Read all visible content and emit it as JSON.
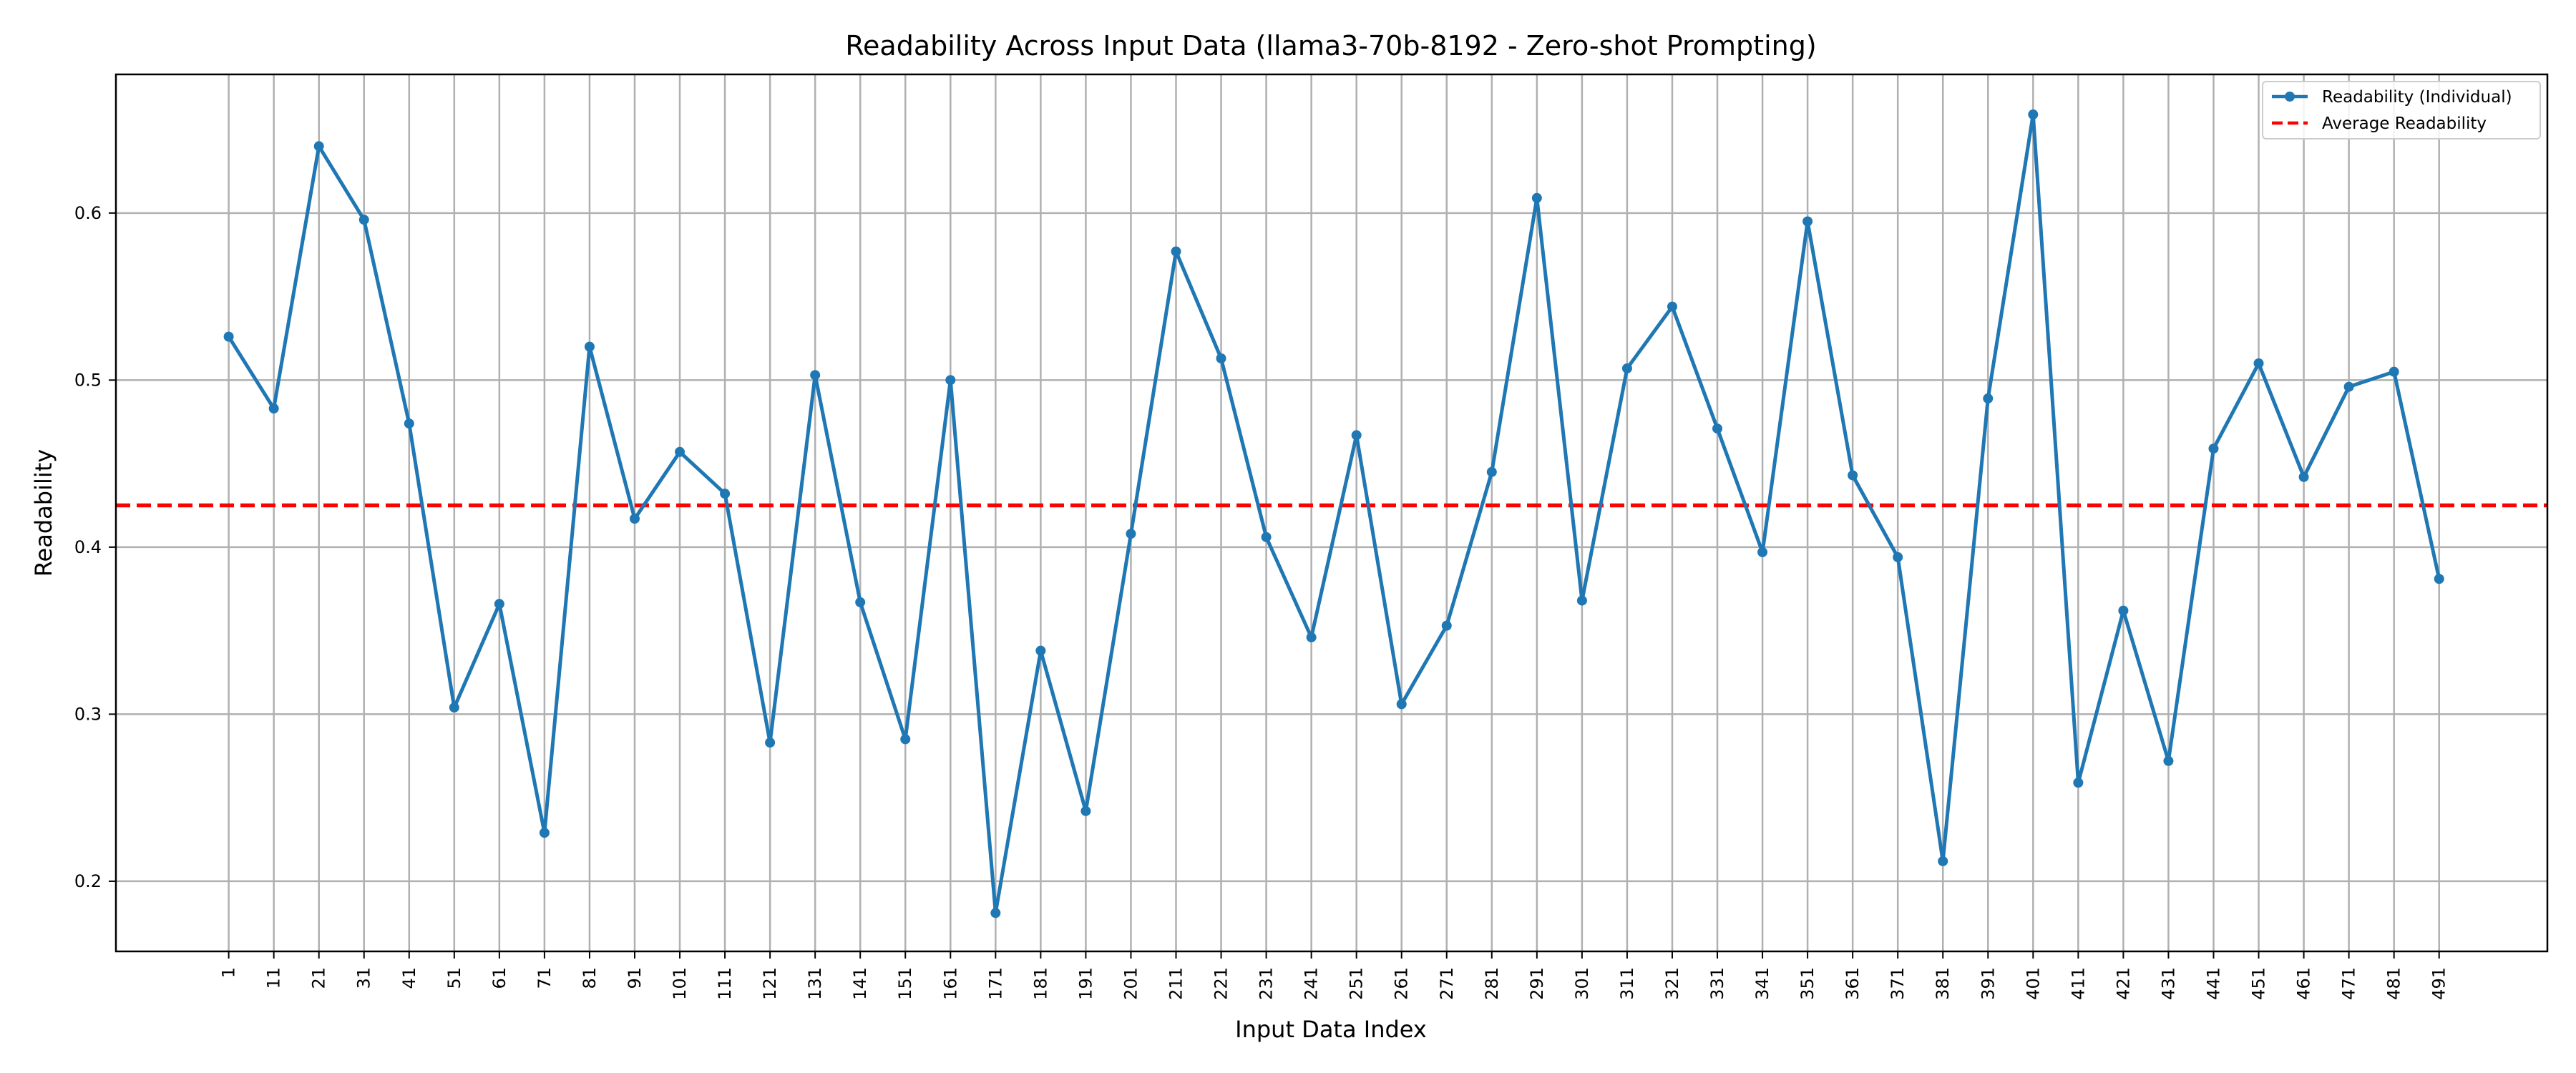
{
  "chart_data": {
    "type": "line",
    "title": "Readability Across Input Data (llama3-70b-8192 - Zero-shot Prompting)",
    "xlabel": "Input Data Index",
    "ylabel": "Readability",
    "grid": true,
    "legend_position": "top-right",
    "xlim": [
      -24,
      515
    ],
    "ylim": [
      0.158,
      0.683
    ],
    "x": [
      1,
      11,
      21,
      31,
      41,
      51,
      61,
      71,
      81,
      91,
      101,
      111,
      121,
      131,
      141,
      151,
      161,
      171,
      181,
      191,
      201,
      211,
      221,
      231,
      241,
      251,
      261,
      271,
      281,
      291,
      301,
      311,
      321,
      331,
      341,
      351,
      361,
      371,
      381,
      391,
      401,
      411,
      421,
      431,
      441,
      451,
      461,
      471,
      481,
      491
    ],
    "x_ticks": [
      "1",
      "11",
      "21",
      "31",
      "41",
      "51",
      "61",
      "71",
      "81",
      "91",
      "101",
      "111",
      "121",
      "131",
      "141",
      "151",
      "161",
      "171",
      "181",
      "191",
      "201",
      "211",
      "221",
      "231",
      "241",
      "251",
      "261",
      "271",
      "281",
      "291",
      "301",
      "311",
      "321",
      "331",
      "341",
      "351",
      "361",
      "371",
      "381",
      "391",
      "401",
      "411",
      "421",
      "431",
      "441",
      "451",
      "461",
      "471",
      "481",
      "491"
    ],
    "y_ticks": [
      0.2,
      0.3,
      0.4,
      0.5,
      0.6
    ],
    "y_tick_labels": [
      "0.2",
      "0.3",
      "0.4",
      "0.5",
      "0.6"
    ],
    "series": [
      {
        "name": "Readability (Individual)",
        "color": "#1f77b4",
        "style": "line-with-markers",
        "values": [
          0.526,
          0.483,
          0.64,
          0.596,
          0.474,
          0.304,
          0.366,
          0.229,
          0.52,
          0.417,
          0.457,
          0.432,
          0.283,
          0.503,
          0.367,
          0.285,
          0.5,
          0.181,
          0.338,
          0.242,
          0.408,
          0.577,
          0.513,
          0.406,
          0.346,
          0.467,
          0.306,
          0.353,
          0.445,
          0.609,
          0.368,
          0.507,
          0.544,
          0.471,
          0.397,
          0.595,
          0.443,
          0.394,
          0.212,
          0.489,
          0.659,
          0.259,
          0.362,
          0.272,
          0.459,
          0.51,
          0.442,
          0.496,
          0.505,
          0.381
        ]
      }
    ],
    "reference_lines": [
      {
        "name": "Average Readability",
        "value": 0.425,
        "color": "#ff0000",
        "style": "dashed"
      }
    ],
    "legend": [
      {
        "label": "Readability (Individual)",
        "color": "#1f77b4",
        "style": "line-marker"
      },
      {
        "label": "Average Readability",
        "color": "#ff0000",
        "style": "dashed"
      }
    ]
  }
}
